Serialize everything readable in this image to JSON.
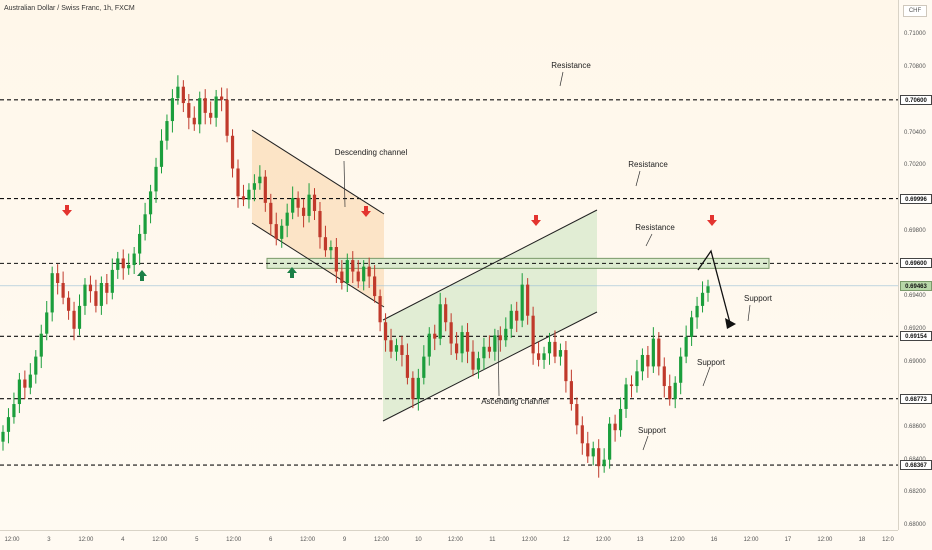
{
  "header": {
    "symbol_title": "Australian Dollar / Swiss Franc, 1h, FXCM",
    "currency": "CHF"
  },
  "colors": {
    "bull": "#1b9e3c",
    "bear": "#c0392b",
    "level_line": "#111111",
    "badge_bg": "#ffffff",
    "current_badge_bg": "#b7d7a8",
    "arrow_up": "#1b7f46",
    "arrow_down": "#e3342f",
    "channel_down_fill": "#fbe0bf",
    "channel_up_fill": "#dcebcf"
  },
  "price_axis": {
    "labels": [
      "0.71000",
      "0.70800",
      "0.70400",
      "0.70200",
      "0.69800",
      "0.69400",
      "0.69200",
      "0.69000",
      "0.68600",
      "0.68400",
      "0.68200",
      "0.68000"
    ],
    "level_badges": [
      "0.70600",
      "0.69996",
      "0.69600",
      "0.69463",
      "0.69154",
      "0.68773",
      "0.68367"
    ]
  },
  "time_axis": {
    "labels": [
      "12:00",
      "3",
      "12:00",
      "4",
      "12:00",
      "5",
      "12:00",
      "6",
      "12:00",
      "9",
      "12:00",
      "10",
      "12:00",
      "11",
      "12:00",
      "12",
      "12:00",
      "13",
      "12:00",
      "16",
      "12:00",
      "17",
      "12:00",
      "18",
      "12:0"
    ]
  },
  "annotations": {
    "resistance_1": "Resistance",
    "resistance_2": "Resistance",
    "resistance_3": "Resistance",
    "descending_channel": "Descending channel",
    "ascending_channel": "Ascending channel",
    "support_1": "Support",
    "support_2": "Support",
    "support_3": "Support"
  },
  "chart_data": {
    "type": "candlestick",
    "symbol": "Australian Dollar / Swiss Franc",
    "timeframe": "1h",
    "source": "FXCM",
    "ylim": [
      0.6797,
      0.7121
    ],
    "current_price": 0.69463,
    "horizontal_levels": [
      {
        "role": "Resistance",
        "price": 0.706
      },
      {
        "role": "Resistance",
        "price": 0.69996
      },
      {
        "role": "Resistance",
        "price": 0.696
      },
      {
        "role": "Support",
        "price": 0.69154
      },
      {
        "role": "Support",
        "price": 0.68773
      },
      {
        "role": "Support",
        "price": 0.68367
      }
    ],
    "closes": [
      0.6857,
      0.6866,
      0.6874,
      0.6889,
      0.6884,
      0.6892,
      0.6903,
      0.6917,
      0.693,
      0.6954,
      0.6948,
      0.6939,
      0.6931,
      0.692,
      0.6934,
      0.6947,
      0.6943,
      0.6934,
      0.6948,
      0.6942,
      0.6956,
      0.6963,
      0.6957,
      0.6959,
      0.6966,
      0.6978,
      0.699,
      0.7004,
      0.7019,
      0.7035,
      0.7047,
      0.7061,
      0.7068,
      0.7058,
      0.7049,
      0.7045,
      0.7061,
      0.7052,
      0.7049,
      0.7062,
      0.706,
      0.7038,
      0.7018,
      0.7001,
      0.6999,
      0.7005,
      0.7009,
      0.7013,
      0.6997,
      0.6984,
      0.6975,
      0.6983,
      0.6991,
      0.7,
      0.6994,
      0.6989,
      0.7002,
      0.6992,
      0.6976,
      0.6968,
      0.697,
      0.6955,
      0.6948,
      0.6962,
      0.6955,
      0.6949,
      0.6958,
      0.6952,
      0.694,
      0.6924,
      0.6913,
      0.6906,
      0.691,
      0.6904,
      0.689,
      0.6877,
      0.689,
      0.6903,
      0.6917,
      0.6914,
      0.6935,
      0.6924,
      0.6911,
      0.6905,
      0.6918,
      0.6906,
      0.6895,
      0.6902,
      0.6909,
      0.6906,
      0.6916,
      0.6913,
      0.692,
      0.6931,
      0.6925,
      0.6947,
      0.6928,
      0.6905,
      0.6901,
      0.6905,
      0.6912,
      0.6903,
      0.6907,
      0.6888,
      0.6874,
      0.6861,
      0.685,
      0.6842,
      0.6847,
      0.6836,
      0.684,
      0.6862,
      0.6858,
      0.6871,
      0.6886,
      0.6885,
      0.6894,
      0.6904,
      0.6897,
      0.6914,
      0.6897,
      0.6885,
      0.6877,
      0.6887,
      0.6903,
      0.6915,
      0.6927,
      0.6934,
      0.6942,
      0.6946
    ]
  }
}
